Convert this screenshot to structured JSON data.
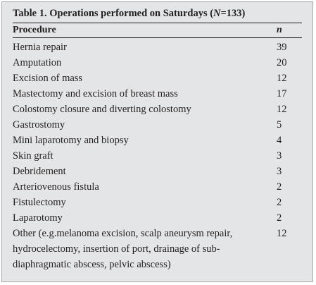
{
  "table": {
    "title": [
      "Table 1. Operations performed on Saturdays (",
      "N",
      "=133)"
    ],
    "header": [
      "Procedure",
      "n"
    ],
    "rows": [
      [
        "Hernia repair",
        "39"
      ],
      [
        "Amputation",
        "20"
      ],
      [
        "Excision of mass",
        "12"
      ],
      [
        "Mastectomy and excision of breast mass",
        "17"
      ],
      [
        "Colostomy closure and diverting colostomy",
        "12"
      ],
      [
        "Gastrostomy",
        "5"
      ],
      [
        "Mini laparotomy and biopsy",
        "4"
      ],
      [
        "Skin graft",
        "3"
      ],
      [
        "Debridement",
        "3"
      ],
      [
        "Arteriovenous fistula",
        "2"
      ],
      [
        "Fistulectomy",
        "2"
      ],
      [
        "Laparotomy",
        "2"
      ],
      [
        "Other (e.g.melanoma excision, scalp aneurysm repair, hydrocelectomy, insertion of port, drainage of sub-diaphragmatic abscess, pelvic abscess)",
        "12"
      ]
    ]
  }
}
